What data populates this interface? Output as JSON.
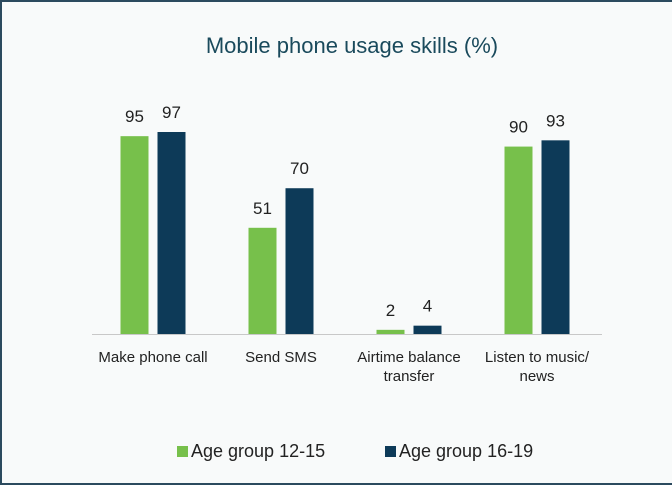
{
  "chart_data": {
    "type": "bar",
    "title": "Mobile phone usage skills (%)",
    "categories": [
      "Make phone call",
      "Send SMS",
      "Airtime balance transfer",
      "Listen to music/ news"
    ],
    "series": [
      {
        "name": "Age group 12-15",
        "color": "#77c04b",
        "values": [
          95,
          51,
          2,
          90
        ]
      },
      {
        "name": "Age group 16-19",
        "color": "#0d3a58",
        "values": [
          97,
          70,
          4,
          93
        ]
      }
    ]
  }
}
